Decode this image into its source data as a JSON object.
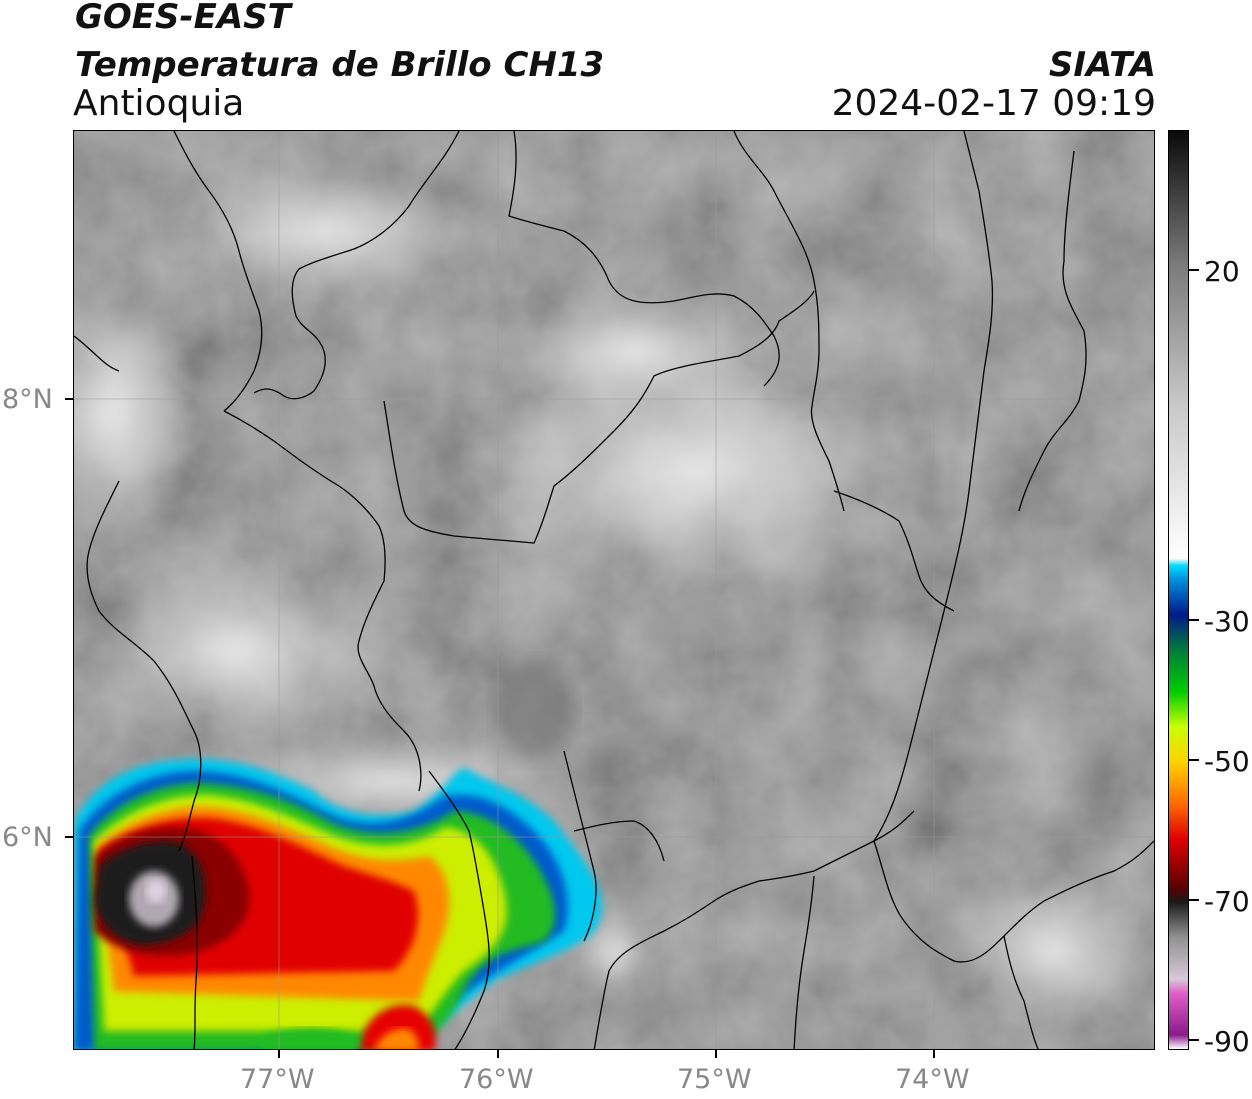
{
  "header": {
    "satellite": "GOES-EAST",
    "product": "Temperatura de Brillo CH13",
    "region": "Antioquia",
    "institution": "SIATA",
    "datetime": "2024-02-17 09:19"
  },
  "map": {
    "lon_range": [
      -77.95,
      -73.0
    ],
    "lat_range": [
      5.05,
      9.25
    ],
    "gridlines": true,
    "x_ticks": [
      "77°W",
      "76°W",
      "75°W",
      "74°W"
    ],
    "y_ticks": [
      "8°N",
      "6°N"
    ],
    "features": [
      "coastline",
      "country-borders",
      "department-borders"
    ],
    "cold_cloud_top_location": "southwest"
  },
  "colorbar": {
    "vmin": -92,
    "vmax": 39,
    "ticks": [
      "20",
      "-30",
      "-50",
      "-70",
      "-90"
    ],
    "tick_values": [
      20,
      -30,
      -50,
      -70,
      -90
    ],
    "stops": [
      {
        "v": -92,
        "c": "#ffffff"
      },
      {
        "v": -90,
        "c": "#8b1a8b"
      },
      {
        "v": -84,
        "c": "#e060c8"
      },
      {
        "v": -82,
        "c": "#d8c8d8"
      },
      {
        "v": -76,
        "c": "#909090"
      },
      {
        "v": -71,
        "c": "#1a1a1a"
      },
      {
        "v": -69,
        "c": "#5a0000"
      },
      {
        "v": -62,
        "c": "#e00000"
      },
      {
        "v": -57,
        "c": "#ff6a00"
      },
      {
        "v": -51,
        "c": "#ffd200"
      },
      {
        "v": -46,
        "c": "#c8ff00"
      },
      {
        "v": -41,
        "c": "#00cc00"
      },
      {
        "v": -35,
        "c": "#007a3a"
      },
      {
        "v": -30,
        "c": "#001a8a"
      },
      {
        "v": -25,
        "c": "#0090e0"
      },
      {
        "v": -23,
        "c": "#00ddff"
      },
      {
        "v": -22,
        "c": "#ffffff"
      },
      {
        "v": 0,
        "c": "#c8c8c8"
      },
      {
        "v": 20,
        "c": "#7a7a7a"
      },
      {
        "v": 39,
        "c": "#0a0a0a"
      }
    ]
  }
}
